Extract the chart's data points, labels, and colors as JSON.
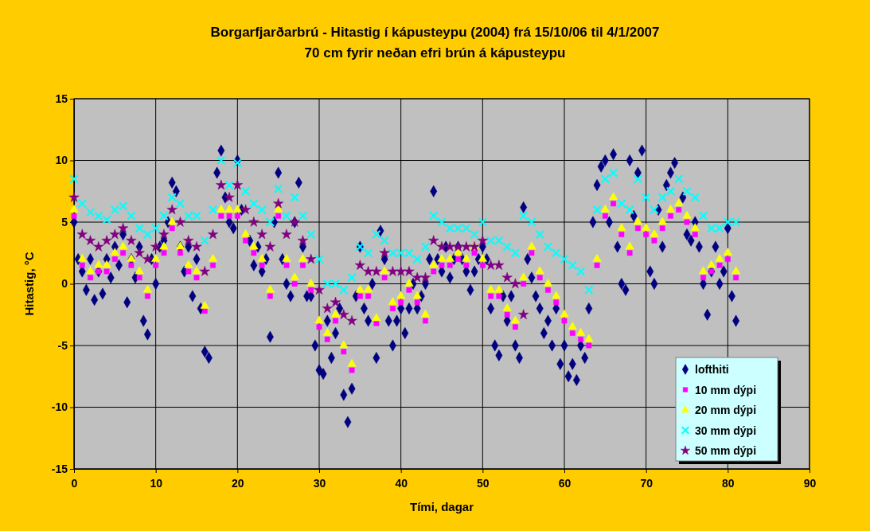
{
  "chart_data": {
    "type": "scatter",
    "title": "Borgarfjarðarbrú - Hitastig í kápusteypu (2004) frá 15/10/06 til 4/1/2007",
    "subtitle": "70 cm fyrir neðan efri brún á kápusteypu",
    "xlabel": "Tími, dagar",
    "ylabel": "Hitastig, °C",
    "xlim": [
      0,
      90
    ],
    "xticks": [
      0,
      10,
      20,
      30,
      40,
      50,
      60,
      70,
      80,
      90
    ],
    "ylim": [
      -15,
      15
    ],
    "yticks": [
      -15,
      -10,
      -5,
      0,
      5,
      10,
      15
    ],
    "grid": true,
    "legend": "bottom right",
    "series": [
      {
        "name": "lofthiti",
        "color": "#000080",
        "marker": "diamond",
        "x": [
          0,
          0.5,
          1,
          1.5,
          2,
          2.5,
          3,
          3.5,
          4,
          4.5,
          5,
          5.5,
          6,
          6.5,
          7,
          7.5,
          8,
          8.5,
          9,
          9.5,
          10,
          10.5,
          11,
          11.5,
          12,
          12.5,
          13,
          13.5,
          14,
          14.5,
          15,
          15.5,
          16,
          16.5,
          17.5,
          18,
          18.5,
          19,
          19.5,
          20,
          20.5,
          21.5,
          22,
          22.5,
          23,
          23.5,
          24,
          24.5,
          25,
          25.5,
          26,
          26.5,
          27,
          27.5,
          28,
          28.5,
          29,
          29.5,
          30,
          30.5,
          31,
          31.5,
          32,
          32.5,
          33,
          33.5,
          34,
          34.5,
          35,
          35.5,
          36,
          36.5,
          37,
          37.5,
          38,
          38.5,
          39,
          39.5,
          40,
          40.5,
          41,
          41.5,
          42,
          42.5,
          43,
          43.5,
          44,
          44.5,
          45,
          45.5,
          46,
          46.5,
          47,
          47.5,
          48,
          48.5,
          49,
          49.5,
          50,
          50.5,
          51,
          51.5,
          52,
          52.5,
          53,
          53.5,
          54,
          54.5,
          55,
          55.5,
          56,
          56.5,
          57,
          57.5,
          58,
          58.5,
          59,
          59.5,
          60,
          60.5,
          61,
          61.5,
          62,
          62.5,
          63,
          63.5,
          64,
          64.5,
          65,
          65.5,
          66,
          66.5,
          67,
          67.5,
          68,
          68.5,
          69,
          69.5,
          70.5,
          71,
          71.5,
          72,
          72.5,
          73,
          73.5,
          74.5,
          75,
          75.5,
          76,
          76.5,
          77,
          77.5,
          78,
          78.5,
          79,
          79.5,
          80,
          80.5,
          81
        ],
        "values": [
          5,
          2,
          1,
          -0.5,
          2,
          -1.3,
          1,
          -0.8,
          2,
          0.5,
          3,
          1.5,
          4,
          -1.5,
          2,
          0.5,
          3,
          -3,
          -4.1,
          2,
          0,
          3,
          3.5,
          5,
          8.2,
          7.5,
          3,
          1,
          3,
          -1,
          2,
          -2,
          -5.5,
          -6,
          9,
          10.8,
          7,
          5,
          4.5,
          10,
          6,
          3.5,
          1.5,
          3,
          1,
          2,
          -4.3,
          5,
          9,
          2,
          0,
          -1,
          5,
          8.2,
          3,
          -1,
          -1,
          -5,
          -7,
          -7.3,
          -3,
          -6,
          -4,
          -2,
          -9,
          -11.2,
          -8.5,
          -1,
          3,
          -2,
          -3,
          0,
          -6,
          4.3,
          2,
          -3,
          -5,
          -3,
          -2,
          -4,
          -2,
          0,
          -2,
          -1,
          0,
          2,
          7.5,
          2,
          1,
          3,
          0.5,
          2,
          3,
          2,
          1,
          -0.5,
          1,
          2,
          3,
          2,
          -2,
          -5,
          -5.8,
          -1,
          -3,
          -1,
          -5,
          -6,
          6.2,
          2,
          0.5,
          -1,
          -2,
          -4,
          -3,
          -5,
          -2,
          -6.5,
          -5,
          -7.5,
          -6.5,
          -7.8,
          -5,
          -6,
          -2,
          5,
          8,
          9.5,
          10,
          5,
          10.5,
          3,
          0,
          -0.5,
          10,
          5.5,
          9,
          10.8,
          1,
          0,
          6,
          3,
          8,
          9,
          9.8,
          7,
          4,
          3.5,
          5,
          3,
          0,
          -2.5,
          1,
          3,
          0,
          1,
          4.5,
          -1,
          -3
        ]
      },
      {
        "name": "10 mm dýpi",
        "color": "#ff00ff",
        "marker": "square",
        "x": [
          0,
          1,
          2,
          3,
          4,
          5,
          6,
          7,
          8,
          9,
          10,
          11,
          12,
          13,
          14,
          15,
          16,
          17,
          18,
          19,
          20,
          21,
          22,
          23,
          24,
          25,
          26,
          27,
          28,
          29,
          30,
          31,
          32,
          33,
          34,
          35,
          36,
          37,
          38,
          39,
          40,
          41,
          42,
          43,
          44,
          45,
          46,
          47,
          48,
          49,
          50,
          51,
          52,
          53,
          54,
          55,
          56,
          57,
          58,
          59,
          60,
          61,
          62,
          63,
          64,
          65,
          66,
          67,
          68,
          69,
          70,
          71,
          72,
          73,
          74,
          75,
          76,
          77,
          78,
          79,
          80,
          81
        ],
        "values": [
          5.5,
          1.5,
          0.5,
          1,
          1,
          2,
          2.5,
          1.5,
          0.5,
          -1,
          1.5,
          2.5,
          4.5,
          2.5,
          1,
          0.5,
          -2.2,
          1.5,
          5.5,
          5.5,
          5.5,
          3.5,
          2.5,
          1.5,
          -1,
          5.5,
          1.5,
          0,
          1.5,
          -0.5,
          -3.5,
          -4.5,
          -3,
          -5.5,
          -7,
          -1,
          -1,
          -3.2,
          0.5,
          -2,
          -1.5,
          -0.5,
          -1.5,
          -3,
          1,
          1.5,
          1.5,
          2,
          1.5,
          2.5,
          1.5,
          -1,
          -1,
          -2.5,
          -3.5,
          0,
          2.5,
          0.5,
          -0.5,
          -1.5,
          -3,
          -4,
          -4.5,
          -5,
          1.5,
          5.5,
          6.5,
          4,
          2.5,
          4.5,
          4,
          3.5,
          4.5,
          5.5,
          6,
          5,
          4,
          0.5,
          1,
          1.5,
          2,
          0.5
        ]
      },
      {
        "name": "20 mm dýpi",
        "color": "#ffff00",
        "marker": "triangle",
        "x": [
          0,
          1,
          2,
          3,
          4,
          5,
          6,
          7,
          8,
          9,
          10,
          11,
          12,
          13,
          14,
          15,
          16,
          17,
          18,
          19,
          20,
          21,
          22,
          23,
          24,
          25,
          26,
          27,
          28,
          29,
          30,
          31,
          32,
          33,
          34,
          35,
          36,
          37,
          38,
          39,
          40,
          41,
          42,
          43,
          44,
          45,
          46,
          47,
          48,
          49,
          50,
          51,
          52,
          53,
          54,
          55,
          56,
          57,
          58,
          59,
          60,
          61,
          62,
          63,
          64,
          65,
          66,
          67,
          68,
          69,
          70,
          71,
          72,
          73,
          74,
          75,
          76,
          77,
          78,
          79,
          80,
          81
        ],
        "values": [
          6,
          2,
          1,
          1.5,
          1.5,
          2.5,
          3,
          2,
          1,
          -0.5,
          2,
          3,
          5,
          3,
          1.5,
          1,
          -1.8,
          2,
          6,
          6,
          6,
          4,
          3,
          2,
          -0.5,
          6,
          2,
          0.5,
          2,
          0,
          -3,
          -4,
          -2.5,
          -5,
          -6.5,
          -0.5,
          -0.5,
          -2.8,
          1,
          -1.5,
          -1,
          0,
          -1,
          -2.5,
          1.5,
          2,
          2,
          2.5,
          2,
          3,
          2,
          -0.5,
          -0.5,
          -2,
          -3,
          0.5,
          3,
          1,
          0,
          -1,
          -2.5,
          -3.5,
          -4,
          -4.5,
          2,
          6,
          7,
          4.5,
          3,
          5,
          4.5,
          4,
          5,
          6,
          6.5,
          5.5,
          4.5,
          1,
          1.5,
          2,
          2.5,
          1
        ]
      },
      {
        "name": "30 mm dýpi",
        "color": "#00ffff",
        "marker": "cross",
        "x": [
          0,
          1,
          2,
          3,
          4,
          5,
          6,
          7,
          8,
          9,
          10,
          11,
          12,
          13,
          14,
          15,
          16,
          17,
          18,
          19,
          20,
          21,
          22,
          23,
          24,
          25,
          26,
          27,
          28,
          29,
          30,
          31,
          32,
          33,
          34,
          35,
          36,
          37,
          38,
          39,
          40,
          41,
          42,
          43,
          44,
          45,
          46,
          47,
          48,
          49,
          50,
          51,
          52,
          53,
          54,
          55,
          56,
          57,
          58,
          59,
          60,
          61,
          62,
          63,
          64,
          65,
          66,
          67,
          68,
          69,
          70,
          71,
          72,
          73,
          74,
          75,
          76,
          77,
          78,
          79,
          80,
          81
        ],
        "values": [
          8.5,
          6.5,
          5.8,
          5.5,
          5.2,
          6,
          6.3,
          5.5,
          4.5,
          4,
          4.5,
          5.5,
          7,
          6.5,
          5.5,
          5.5,
          3.5,
          6,
          10,
          8,
          9.8,
          7.5,
          6.5,
          6,
          5,
          7.7,
          5.5,
          7,
          5.5,
          4,
          2,
          0,
          0,
          -0.5,
          0.5,
          3,
          2.5,
          4,
          3.5,
          2.5,
          2.5,
          2.5,
          2,
          3,
          5.5,
          5,
          4.5,
          4.5,
          4.5,
          4,
          5,
          3.5,
          3.5,
          3,
          2.5,
          5.5,
          5,
          4,
          3,
          2.5,
          2,
          1.5,
          1,
          -0.5,
          6,
          8.5,
          9,
          6.5,
          6,
          8.5,
          7,
          6,
          7,
          7.5,
          8.5,
          7.5,
          7,
          5.5,
          4.5,
          4.5,
          5,
          5
        ]
      },
      {
        "name": "50 mm dýpi",
        "color": "#800080",
        "marker": "star",
        "x": [
          0,
          1,
          2,
          3,
          4,
          5,
          6,
          7,
          8,
          9,
          10,
          11,
          12,
          13,
          14,
          15,
          16,
          17,
          18,
          19,
          20,
          21,
          22,
          23,
          24,
          25,
          26,
          27,
          28,
          29,
          30,
          31,
          32,
          33,
          34,
          35,
          36,
          37,
          38,
          39,
          40,
          41,
          42,
          43,
          44,
          45,
          46,
          47,
          48,
          49,
          50,
          51,
          52,
          53,
          54,
          55
        ],
        "values": [
          7,
          4,
          3.5,
          3,
          3.5,
          4,
          4.5,
          3.5,
          2.5,
          2,
          3,
          4,
          6,
          5,
          3.5,
          3,
          1,
          4,
          8,
          7,
          8,
          6,
          5,
          4,
          3,
          6.5,
          4,
          5,
          3.5,
          2,
          -0.5,
          -2,
          -1.5,
          -2.5,
          -3,
          1.5,
          1,
          1,
          2.5,
          1,
          1,
          1,
          0.5,
          0.5,
          3.5,
          3,
          3,
          3,
          3,
          3,
          3.5,
          1.5,
          1.5,
          0.5,
          0,
          -2.5
        ]
      }
    ]
  }
}
